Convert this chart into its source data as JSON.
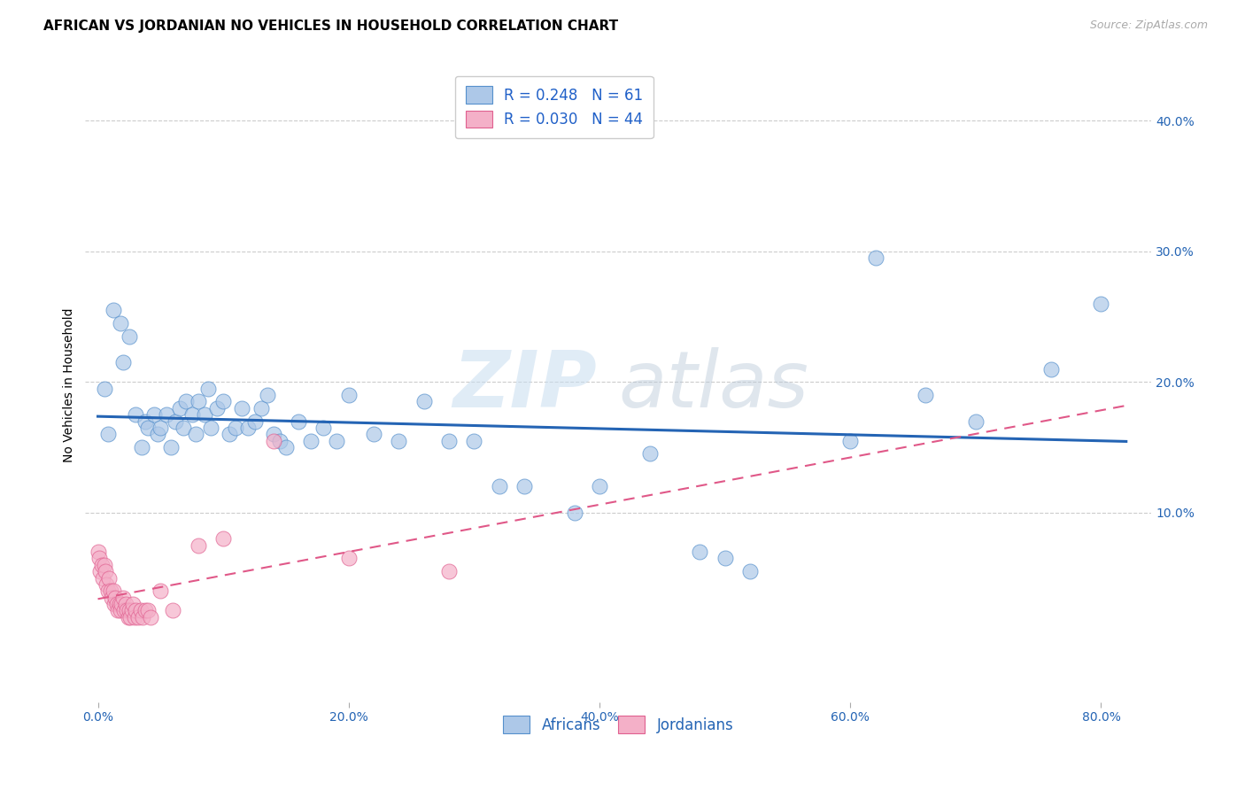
{
  "title": "AFRICAN VS JORDANIAN NO VEHICLES IN HOUSEHOLD CORRELATION CHART",
  "source": "Source: ZipAtlas.com",
  "xlabel_ticks": [
    "0.0%",
    "20.0%",
    "40.0%",
    "60.0%",
    "80.0%"
  ],
  "xlabel_tick_vals": [
    0.0,
    0.2,
    0.4,
    0.6,
    0.8
  ],
  "ylabel_ticks": [
    "10.0%",
    "20.0%",
    "30.0%",
    "40.0%"
  ],
  "ylabel_tick_vals": [
    0.1,
    0.2,
    0.3,
    0.4
  ],
  "xlim": [
    -0.01,
    0.84
  ],
  "ylim": [
    -0.045,
    0.44
  ],
  "african_color": "#adc8e8",
  "african_edge_color": "#5590cc",
  "african_line_color": "#2464b4",
  "jordanian_color": "#f4b0c8",
  "jordanian_edge_color": "#e06090",
  "jordanian_line_color": "#e05888",
  "legend_color_text": "#2060c8",
  "legend_R_african": "0.248",
  "legend_N_african": "61",
  "legend_R_jordanian": "0.030",
  "legend_N_jordanian": "44",
  "watermark_zip": "ZIP",
  "watermark_atlas": "atlas",
  "background_color": "#ffffff",
  "grid_color": "#cccccc",
  "title_fontsize": 11,
  "axis_label_fontsize": 10,
  "tick_fontsize": 10,
  "source_fontsize": 9,
  "african_x": [
    0.005,
    0.008,
    0.012,
    0.018,
    0.02,
    0.025,
    0.03,
    0.035,
    0.038,
    0.04,
    0.045,
    0.048,
    0.05,
    0.055,
    0.058,
    0.062,
    0.065,
    0.068,
    0.07,
    0.075,
    0.078,
    0.08,
    0.085,
    0.088,
    0.09,
    0.095,
    0.1,
    0.105,
    0.11,
    0.115,
    0.12,
    0.125,
    0.13,
    0.135,
    0.14,
    0.145,
    0.15,
    0.16,
    0.17,
    0.18,
    0.19,
    0.2,
    0.22,
    0.24,
    0.26,
    0.28,
    0.3,
    0.32,
    0.34,
    0.38,
    0.4,
    0.44,
    0.48,
    0.5,
    0.52,
    0.6,
    0.62,
    0.66,
    0.7,
    0.76,
    0.8
  ],
  "african_y": [
    0.195,
    0.16,
    0.255,
    0.245,
    0.215,
    0.235,
    0.175,
    0.15,
    0.17,
    0.165,
    0.175,
    0.16,
    0.165,
    0.175,
    0.15,
    0.17,
    0.18,
    0.165,
    0.185,
    0.175,
    0.16,
    0.185,
    0.175,
    0.195,
    0.165,
    0.18,
    0.185,
    0.16,
    0.165,
    0.18,
    0.165,
    0.17,
    0.18,
    0.19,
    0.16,
    0.155,
    0.15,
    0.17,
    0.155,
    0.165,
    0.155,
    0.19,
    0.16,
    0.155,
    0.185,
    0.155,
    0.155,
    0.12,
    0.12,
    0.1,
    0.12,
    0.145,
    0.07,
    0.065,
    0.055,
    0.155,
    0.295,
    0.19,
    0.17,
    0.21,
    0.26
  ],
  "jordanian_x": [
    0.0,
    0.001,
    0.002,
    0.003,
    0.004,
    0.005,
    0.006,
    0.007,
    0.008,
    0.009,
    0.01,
    0.011,
    0.012,
    0.013,
    0.014,
    0.015,
    0.016,
    0.017,
    0.018,
    0.019,
    0.02,
    0.021,
    0.022,
    0.023,
    0.024,
    0.025,
    0.026,
    0.027,
    0.028,
    0.029,
    0.03,
    0.032,
    0.034,
    0.036,
    0.038,
    0.04,
    0.042,
    0.05,
    0.06,
    0.08,
    0.1,
    0.14,
    0.2,
    0.28
  ],
  "jordanian_y": [
    0.07,
    0.065,
    0.055,
    0.06,
    0.05,
    0.06,
    0.055,
    0.045,
    0.04,
    0.05,
    0.04,
    0.035,
    0.04,
    0.03,
    0.035,
    0.03,
    0.025,
    0.03,
    0.025,
    0.03,
    0.035,
    0.025,
    0.03,
    0.025,
    0.02,
    0.025,
    0.02,
    0.025,
    0.03,
    0.02,
    0.025,
    0.02,
    0.025,
    0.02,
    0.025,
    0.025,
    0.02,
    0.04,
    0.025,
    0.075,
    0.08,
    0.155,
    0.065,
    0.055
  ]
}
